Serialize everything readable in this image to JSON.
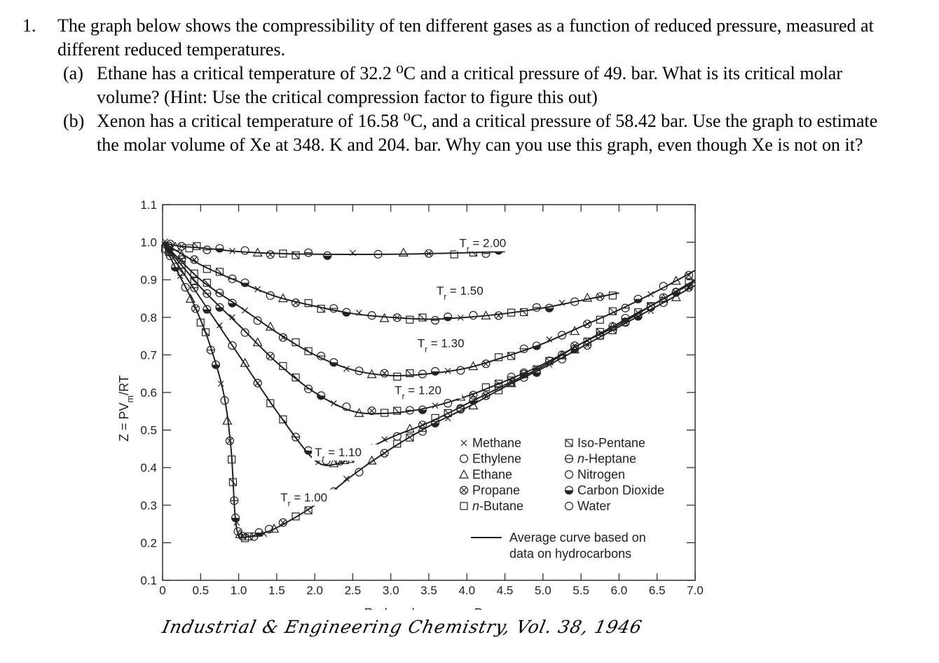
{
  "question": {
    "number": "1.",
    "stem": "The graph below shows the compressibility of ten different gases as a function of reduced pressure, measured at different reduced temperatures.",
    "parts": [
      {
        "label": "(a)",
        "text": "Ethane has a critical temperature of 32.2 ⁰C and a critical pressure of 49. bar. What is its critical molar volume? (Hint: Use the critical compression factor to figure this out)"
      },
      {
        "label": "(b)",
        "text": "Xenon has a critical temperature of 16.58 ⁰C, and a critical pressure of 58.42 bar. Use the graph to estimate the molar volume of Xe at 348. K and 204. bar. Why can you use this graph, even though Xe is not on it?"
      }
    ]
  },
  "citation": "Industrial & Engineering Chemistry, Vol. 38, 1946",
  "chart_data": {
    "type": "line",
    "title": "",
    "xlabel": "Reduced pressure, P_r",
    "ylabel": "Z = PV_m/RT",
    "xlim": [
      0,
      7.0
    ],
    "ylim": [
      0.1,
      1.1
    ],
    "x_ticks": [
      "0",
      "0.5",
      "1.0",
      "1.5",
      "2.0",
      "2.5",
      "3.0",
      "3.5",
      "4.0",
      "4.5",
      "5.0",
      "5.5",
      "6.0",
      "6.5",
      "7.0"
    ],
    "y_ticks": [
      "0.1",
      "0.2",
      "0.3",
      "0.4",
      "0.5",
      "0.6",
      "0.7",
      "0.8",
      "0.9",
      "1.0",
      "1.1"
    ],
    "grid": false,
    "legend": {
      "gases_col1": [
        {
          "symbol": "x",
          "label": "Methane"
        },
        {
          "symbol": "circle",
          "label": "Ethylene"
        },
        {
          "symbol": "triangle",
          "label": "Ethane"
        },
        {
          "symbol": "circle-x",
          "label": "Propane"
        },
        {
          "symbol": "square",
          "label": "n-Butane"
        }
      ],
      "gases_col2": [
        {
          "symbol": "square-slash",
          "label": "Iso-Pentane"
        },
        {
          "symbol": "circle-bar",
          "label": "n-Heptane"
        },
        {
          "symbol": "circle-tick",
          "label": "Nitrogen"
        },
        {
          "symbol": "half-circle",
          "label": "Carbon Dioxide"
        },
        {
          "symbol": "bold-circle",
          "label": "Water"
        }
      ],
      "average_line": {
        "line1": "Average curve based on",
        "line2": "data on hydrocarbons"
      }
    },
    "series": [
      {
        "name": "T_r = 2.00",
        "label_pos": [
          3.9,
          0.987
        ],
        "x": [
          0,
          0.2,
          0.5,
          1.0,
          1.5,
          2.0,
          3.0,
          4.0,
          4.5
        ],
        "y": [
          1.0,
          0.99,
          0.985,
          0.975,
          0.97,
          0.968,
          0.968,
          0.972,
          0.975
        ]
      },
      {
        "name": "T_r = 1.50",
        "label_pos": [
          3.6,
          0.86
        ],
        "x": [
          0,
          0.5,
          1.0,
          1.5,
          2.0,
          2.5,
          3.0,
          3.5,
          4.0,
          4.5,
          5.0,
          5.5,
          6.0
        ],
        "y": [
          1.0,
          0.94,
          0.895,
          0.855,
          0.83,
          0.81,
          0.8,
          0.795,
          0.8,
          0.81,
          0.825,
          0.845,
          0.865
        ]
      },
      {
        "name": "T_r = 1.30",
        "label_pos": [
          3.35,
          0.72
        ],
        "x": [
          0,
          0.5,
          1.0,
          1.5,
          2.0,
          2.5,
          3.0,
          3.5,
          4.0,
          4.5,
          5.0,
          5.5,
          6.0,
          6.5,
          7.0
        ],
        "y": [
          1.0,
          0.9,
          0.83,
          0.76,
          0.7,
          0.66,
          0.645,
          0.65,
          0.665,
          0.695,
          0.73,
          0.775,
          0.82,
          0.87,
          0.925
        ]
      },
      {
        "name": "T_r = 1.20",
        "label_pos": [
          3.05,
          0.595
        ],
        "x": [
          0,
          0.5,
          1.0,
          1.5,
          2.0,
          2.5,
          3.0,
          3.5,
          4.0,
          4.5,
          5.0,
          5.5,
          6.0,
          6.5,
          7.0
        ],
        "y": [
          1.0,
          0.88,
          0.78,
          0.68,
          0.6,
          0.55,
          0.545,
          0.56,
          0.59,
          0.63,
          0.675,
          0.73,
          0.785,
          0.84,
          0.9
        ]
      },
      {
        "name": "T_r = 1.10",
        "label_pos": [
          2.0,
          0.43
        ],
        "x": [
          0,
          0.5,
          1.0,
          1.5,
          2.0,
          2.3,
          2.5,
          3.0,
          3.5,
          4.0,
          4.5,
          5.0,
          5.5,
          6.0,
          6.5,
          7.0
        ],
        "y": [
          1.0,
          0.85,
          0.7,
          0.55,
          0.42,
          0.41,
          0.43,
          0.48,
          0.52,
          0.57,
          0.62,
          0.67,
          0.73,
          0.78,
          0.84,
          0.895
        ]
      },
      {
        "name": "T_r = 1.00",
        "label_pos": [
          1.55,
          0.31
        ],
        "x": [
          0,
          0.2,
          0.4,
          0.6,
          0.8,
          0.9,
          0.95,
          1.0,
          1.1,
          1.3,
          1.5,
          2.0,
          2.5,
          3.0,
          3.5,
          4.0,
          4.5,
          5.0,
          5.5,
          6.0,
          6.5,
          7.0
        ],
        "y": [
          1.0,
          0.92,
          0.84,
          0.74,
          0.6,
          0.45,
          0.28,
          0.22,
          0.215,
          0.225,
          0.24,
          0.3,
          0.38,
          0.45,
          0.51,
          0.56,
          0.615,
          0.665,
          0.72,
          0.775,
          0.83,
          0.885
        ]
      }
    ]
  }
}
